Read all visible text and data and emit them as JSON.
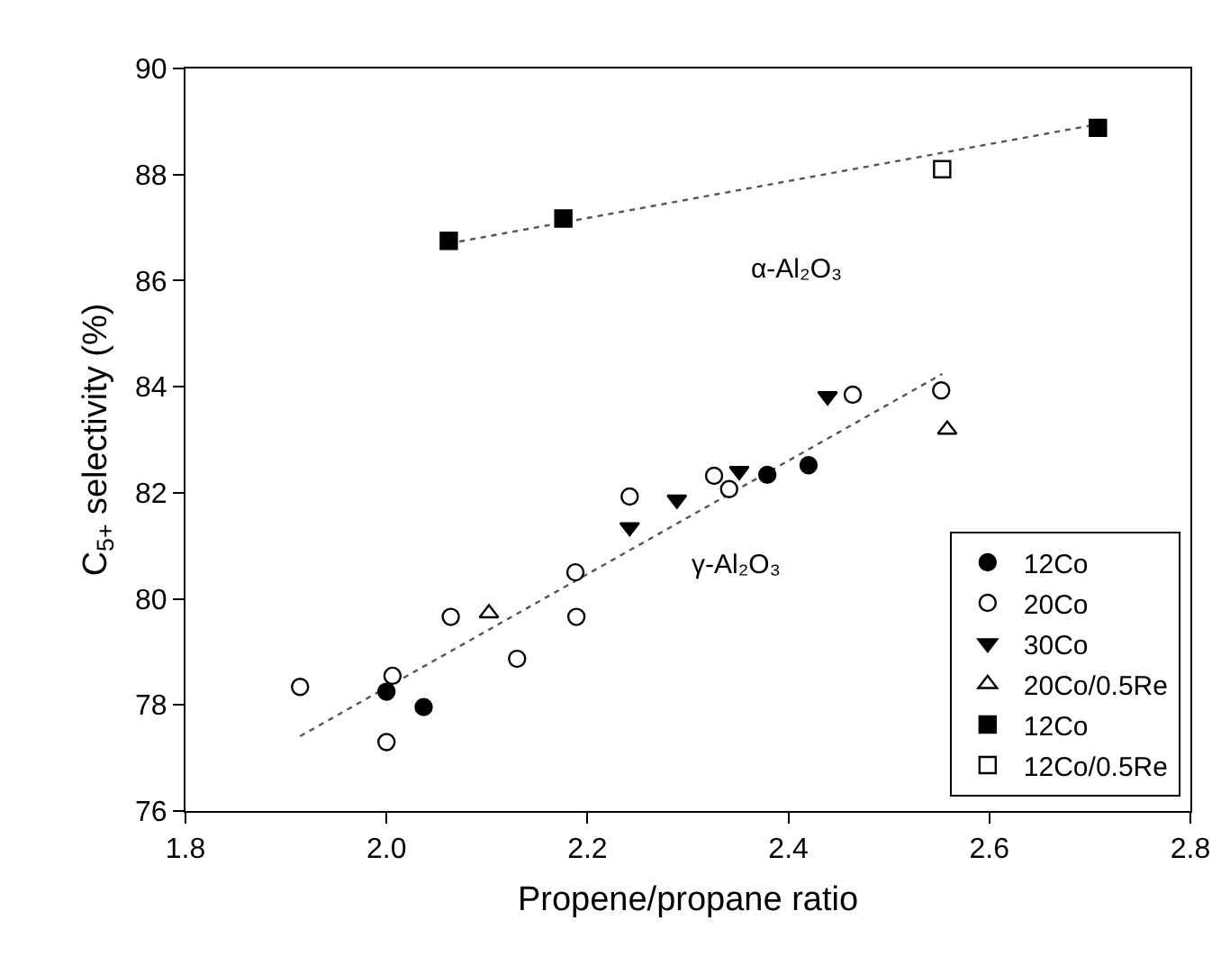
{
  "chart_data": {
    "type": "scatter",
    "xlabel": "Propene/propane ratio",
    "ylabel": "C$_{5+}$ selectivity (%)",
    "xlim": [
      1.8,
      2.8
    ],
    "xticks": [
      {
        "value": 1.8,
        "label": "1.8"
      },
      {
        "value": 2.0,
        "label": "2.0"
      },
      {
        "value": 2.2,
        "label": "2.2"
      },
      {
        "value": 2.4,
        "label": "2.4"
      },
      {
        "value": 2.6,
        "label": "2.6"
      },
      {
        "value": 2.8,
        "label": "2.8"
      }
    ],
    "ylim": [
      76,
      90
    ],
    "yticks": [
      76,
      78,
      80,
      82,
      84,
      86,
      88,
      90
    ],
    "grid": false,
    "legend": "bottom right",
    "series": [
      {
        "name": "12Co",
        "color": "#000000",
        "marker": "circle",
        "x": [
          2.0,
          2.037,
          2.379,
          2.42
        ],
        "values": [
          78.25,
          77.96,
          82.34,
          82.52
        ]
      },
      {
        "name": "20Co",
        "color": "#ffffff",
        "marker": "circle",
        "x": [
          1.914,
          2.0,
          2.006,
          2.064,
          2.13,
          2.188,
          2.189,
          2.242,
          2.326,
          2.341,
          2.464,
          2.552
        ],
        "values": [
          78.34,
          77.3,
          78.55,
          79.66,
          78.87,
          80.5,
          79.66,
          81.93,
          82.32,
          82.07,
          83.85,
          83.93
        ]
      },
      {
        "name": "30Co",
        "color": "#000000",
        "marker": "triangle-down",
        "x": [
          2.242,
          2.289,
          2.351,
          2.439
        ],
        "values": [
          81.35,
          81.87,
          82.41,
          83.82
        ]
      },
      {
        "name": "20Co/0.5Re",
        "color": "#ffffff",
        "marker": "triangle",
        "x": [
          2.102,
          2.558
        ],
        "values": [
          79.73,
          83.19
        ]
      },
      {
        "name": "12Co",
        "color": "#000000",
        "marker": "square",
        "x": [
          2.062,
          2.176,
          2.708
        ],
        "values": [
          86.75,
          87.17,
          88.88
        ]
      },
      {
        "name": "12Co/0.5Re",
        "color": "#ffffff",
        "marker": "square",
        "x": [
          2.553
        ],
        "values": [
          88.1
        ]
      },
      {
        "type": "line",
        "color": "#555555",
        "marker": "none",
        "line_style": "dotted",
        "x": [
          1.914,
          2.553
        ],
        "values": [
          77.41,
          84.24
        ]
      },
      {
        "type": "line",
        "color": "#555555",
        "marker": "none",
        "line_style": "dotted",
        "x": [
          2.062,
          2.708
        ],
        "values": [
          86.7,
          88.95
        ]
      }
    ],
    "annotations": [
      "α-Al₂O₃",
      "γ-Al₂O₃"
    ]
  }
}
